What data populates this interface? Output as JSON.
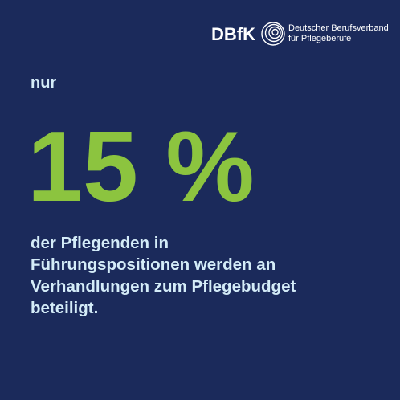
{
  "logo": {
    "name": "DBfK",
    "subtitle_lines": [
      "Deutscher Berufsverband",
      "für Pflegeberufe"
    ]
  },
  "intro": "nur",
  "highlight": "15 %",
  "body_lines": [
    "der Pflegenden in",
    "Führungspositionen werden an",
    "Verhandlungen zum Pflegebudget",
    "beteiligt."
  ]
}
